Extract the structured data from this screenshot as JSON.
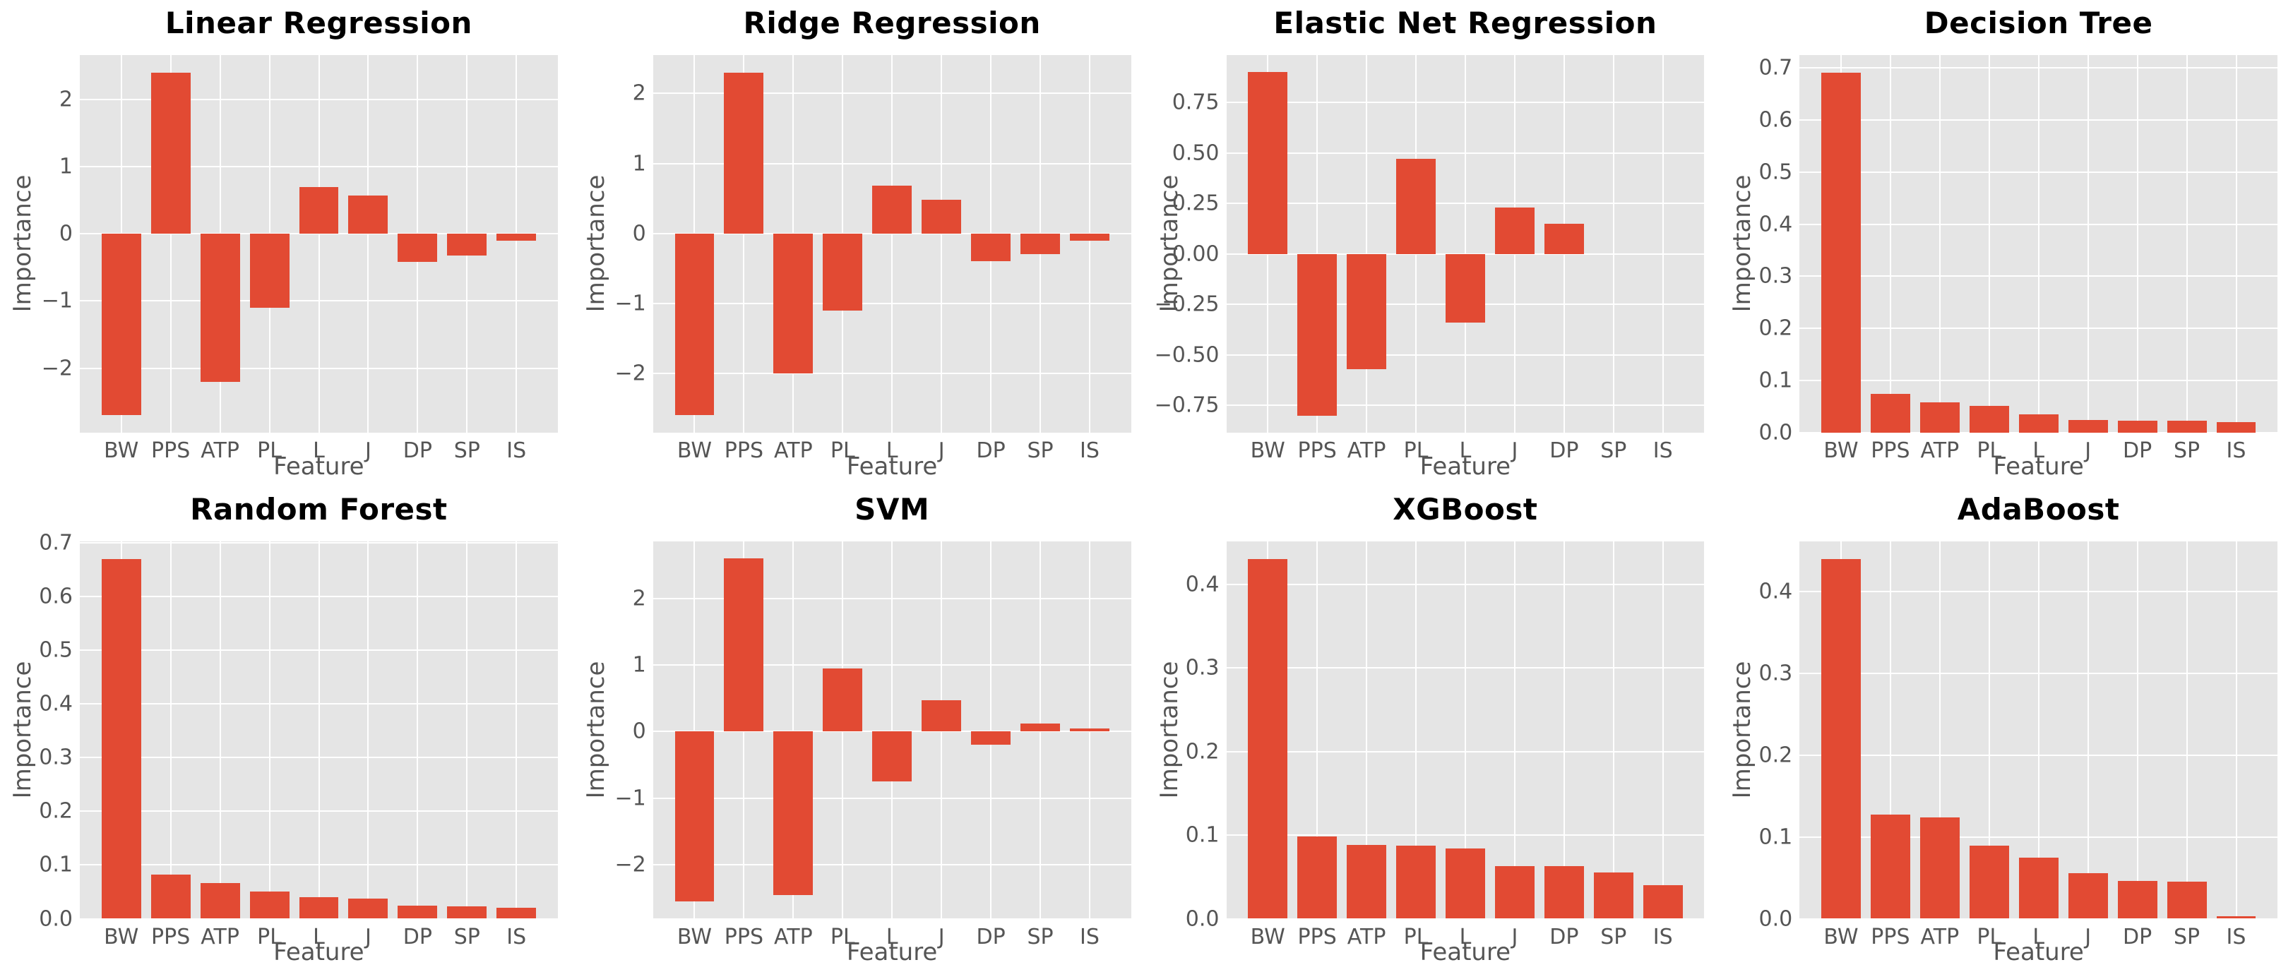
{
  "figure": {
    "background": "#ffffff",
    "plot_background": "#e5e5e5",
    "grid_color": "#ffffff",
    "bar_color": "#e24a33",
    "tick_label_color": "#555555",
    "axis_label_color": "#555555",
    "title_color": "#000000"
  },
  "chart_data": [
    {
      "type": "bar",
      "title": "Linear Regression",
      "xlabel": "Feature",
      "ylabel": "Importance",
      "categories": [
        "BW",
        "PPS",
        "ATP",
        "PL",
        "L",
        "J",
        "DP",
        "SP",
        "IS"
      ],
      "values": [
        -2.7,
        2.4,
        -2.2,
        -1.1,
        0.7,
        0.57,
        -0.42,
        -0.32,
        -0.1
      ],
      "ylim": [
        -2.96,
        2.66
      ],
      "yticks": [
        -2,
        -1,
        0,
        1,
        2
      ],
      "ytick_labels": [
        "−2",
        "−1",
        "0",
        "1",
        "2"
      ],
      "grid": true,
      "legend": null
    },
    {
      "type": "bar",
      "title": "Ridge Regression",
      "xlabel": "Feature",
      "ylabel": "Importance",
      "categories": [
        "BW",
        "PPS",
        "ATP",
        "PL",
        "L",
        "J",
        "DP",
        "SP",
        "IS"
      ],
      "values": [
        -2.6,
        2.3,
        -2.0,
        -1.1,
        0.68,
        0.48,
        -0.4,
        -0.3,
        -0.1
      ],
      "ylim": [
        -2.85,
        2.55
      ],
      "yticks": [
        -2,
        -1,
        0,
        1,
        2
      ],
      "ytick_labels": [
        "−2",
        "−1",
        "0",
        "1",
        "2"
      ],
      "grid": true,
      "legend": null
    },
    {
      "type": "bar",
      "title": "Elastic Net Regression",
      "xlabel": "Feature",
      "ylabel": "Importance",
      "categories": [
        "BW",
        "PPS",
        "ATP",
        "PL",
        "L",
        "J",
        "DP",
        "SP",
        "IS"
      ],
      "values": [
        0.9,
        -0.8,
        -0.57,
        0.47,
        -0.34,
        0.23,
        0.15,
        0.0,
        0.0
      ],
      "ylim": [
        -0.885,
        0.985
      ],
      "yticks": [
        -0.75,
        -0.5,
        -0.25,
        0,
        0.25,
        0.5,
        0.75
      ],
      "ytick_labels": [
        "−0.75",
        "−0.50",
        "−0.25",
        "0.00",
        "0.25",
        "0.50",
        "0.75"
      ],
      "grid": true,
      "legend": null
    },
    {
      "type": "bar",
      "title": "Decision Tree",
      "xlabel": "Feature",
      "ylabel": "Importance",
      "categories": [
        "BW",
        "PPS",
        "ATP",
        "PL",
        "L",
        "J",
        "DP",
        "SP",
        "IS"
      ],
      "values": [
        0.69,
        0.075,
        0.058,
        0.052,
        0.035,
        0.025,
        0.023,
        0.023,
        0.02
      ],
      "ylim": [
        0,
        0.7245
      ],
      "yticks": [
        0,
        0.1,
        0.2,
        0.3,
        0.4,
        0.5,
        0.6,
        0.7
      ],
      "ytick_labels": [
        "0.0",
        "0.1",
        "0.2",
        "0.3",
        "0.4",
        "0.5",
        "0.6",
        "0.7"
      ],
      "grid": true,
      "legend": null
    },
    {
      "type": "bar",
      "title": "Random Forest",
      "xlabel": "Feature",
      "ylabel": "Importance",
      "categories": [
        "BW",
        "PPS",
        "ATP",
        "PL",
        "L",
        "J",
        "DP",
        "SP",
        "IS"
      ],
      "values": [
        0.67,
        0.082,
        0.067,
        0.05,
        0.04,
        0.037,
        0.024,
        0.023,
        0.021
      ],
      "ylim": [
        0,
        0.7035
      ],
      "yticks": [
        0,
        0.1,
        0.2,
        0.3,
        0.4,
        0.5,
        0.6,
        0.7
      ],
      "ytick_labels": [
        "0.0",
        "0.1",
        "0.2",
        "0.3",
        "0.4",
        "0.5",
        "0.6",
        "0.7"
      ],
      "grid": true,
      "legend": null
    },
    {
      "type": "bar",
      "title": "SVM",
      "xlabel": "Feature",
      "ylabel": "Importance",
      "categories": [
        "BW",
        "PPS",
        "ATP",
        "PL",
        "L",
        "J",
        "DP",
        "SP",
        "IS"
      ],
      "values": [
        -2.55,
        2.6,
        -2.45,
        0.95,
        -0.75,
        0.47,
        -0.2,
        0.12,
        0.05
      ],
      "ylim": [
        -2.81,
        2.86
      ],
      "yticks": [
        -2,
        -1,
        0,
        1,
        2
      ],
      "ytick_labels": [
        "−2",
        "−1",
        "0",
        "1",
        "2"
      ],
      "grid": true,
      "legend": null
    },
    {
      "type": "bar",
      "title": "XGBoost",
      "xlabel": "Feature",
      "ylabel": "Importance",
      "categories": [
        "BW",
        "PPS",
        "ATP",
        "PL",
        "L",
        "J",
        "DP",
        "SP",
        "IS"
      ],
      "values": [
        0.43,
        0.098,
        0.088,
        0.087,
        0.084,
        0.063,
        0.063,
        0.055,
        0.04
      ],
      "ylim": [
        0,
        0.4515
      ],
      "yticks": [
        0,
        0.1,
        0.2,
        0.3,
        0.4
      ],
      "ytick_labels": [
        "0.0",
        "0.1",
        "0.2",
        "0.3",
        "0.4"
      ],
      "grid": true,
      "legend": null
    },
    {
      "type": "bar",
      "title": "AdaBoost",
      "xlabel": "Feature",
      "ylabel": "Importance",
      "categories": [
        "BW",
        "PPS",
        "ATP",
        "PL",
        "L",
        "J",
        "DP",
        "SP",
        "IS"
      ],
      "values": [
        0.44,
        0.127,
        0.124,
        0.089,
        0.075,
        0.056,
        0.046,
        0.045,
        0.003
      ],
      "ylim": [
        0,
        0.462
      ],
      "yticks": [
        0,
        0.1,
        0.2,
        0.3,
        0.4
      ],
      "ytick_labels": [
        "0.0",
        "0.1",
        "0.2",
        "0.3",
        "0.4"
      ],
      "grid": true,
      "legend": null
    }
  ]
}
